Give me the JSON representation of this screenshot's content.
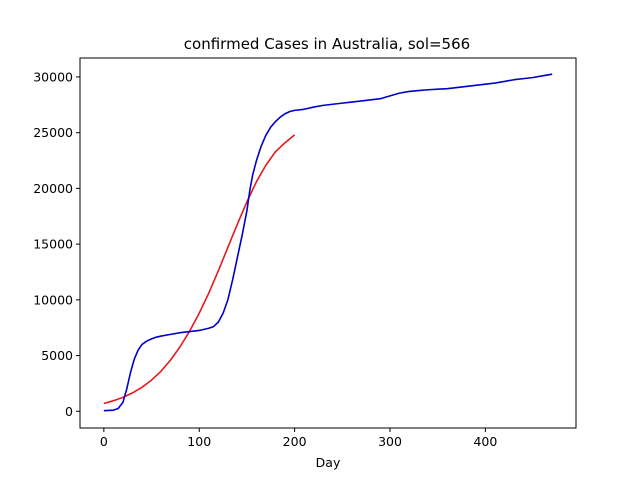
{
  "chart_data": {
    "type": "line",
    "title": "confirmed Cases in Australia, sol=566",
    "xlabel": "Day",
    "ylabel": "",
    "xlim": [
      -25,
      495
    ],
    "ylim": [
      -1500,
      31700
    ],
    "xticks": [
      0,
      100,
      200,
      300,
      400
    ],
    "yticks": [
      0,
      5000,
      10000,
      15000,
      20000,
      25000,
      30000
    ],
    "grid": false,
    "legend": "none",
    "series": [
      {
        "color": "#e41a1c",
        "x": [
          0,
          10,
          20,
          30,
          40,
          50,
          60,
          70,
          80,
          90,
          100,
          110,
          120,
          130,
          140,
          150,
          160,
          170,
          180,
          190,
          200
        ],
        "y": [
          700,
          950,
          1250,
          1650,
          2150,
          2800,
          3600,
          4600,
          5800,
          7200,
          8800,
          10600,
          12600,
          14700,
          16800,
          18800,
          20600,
          22100,
          23300,
          24100,
          24800
        ]
      },
      {
        "color": "#0000cc",
        "x": [
          0,
          10,
          15,
          20,
          24,
          28,
          32,
          36,
          40,
          45,
          50,
          55,
          60,
          70,
          80,
          90,
          100,
          110,
          115,
          120,
          125,
          130,
          135,
          140,
          145,
          150,
          153,
          156,
          160,
          165,
          170,
          175,
          180,
          185,
          190,
          195,
          200,
          210,
          220,
          230,
          240,
          250,
          260,
          270,
          280,
          290,
          300,
          310,
          320,
          330,
          340,
          350,
          360,
          370,
          380,
          390,
          400,
          410,
          420,
          430,
          440,
          450,
          460,
          470
        ],
        "y": [
          50,
          100,
          250,
          800,
          2000,
          3500,
          4700,
          5500,
          6000,
          6300,
          6500,
          6650,
          6750,
          6900,
          7050,
          7150,
          7250,
          7450,
          7600,
          8000,
          8800,
          10000,
          11800,
          13800,
          15800,
          18000,
          19800,
          21200,
          22500,
          23800,
          24800,
          25500,
          26000,
          26400,
          26700,
          26900,
          27000,
          27100,
          27300,
          27450,
          27550,
          27650,
          27750,
          27850,
          27950,
          28050,
          28300,
          28550,
          28700,
          28780,
          28850,
          28900,
          28950,
          29050,
          29150,
          29250,
          29350,
          29450,
          29600,
          29750,
          29850,
          29950,
          30100,
          30250
        ]
      }
    ]
  }
}
